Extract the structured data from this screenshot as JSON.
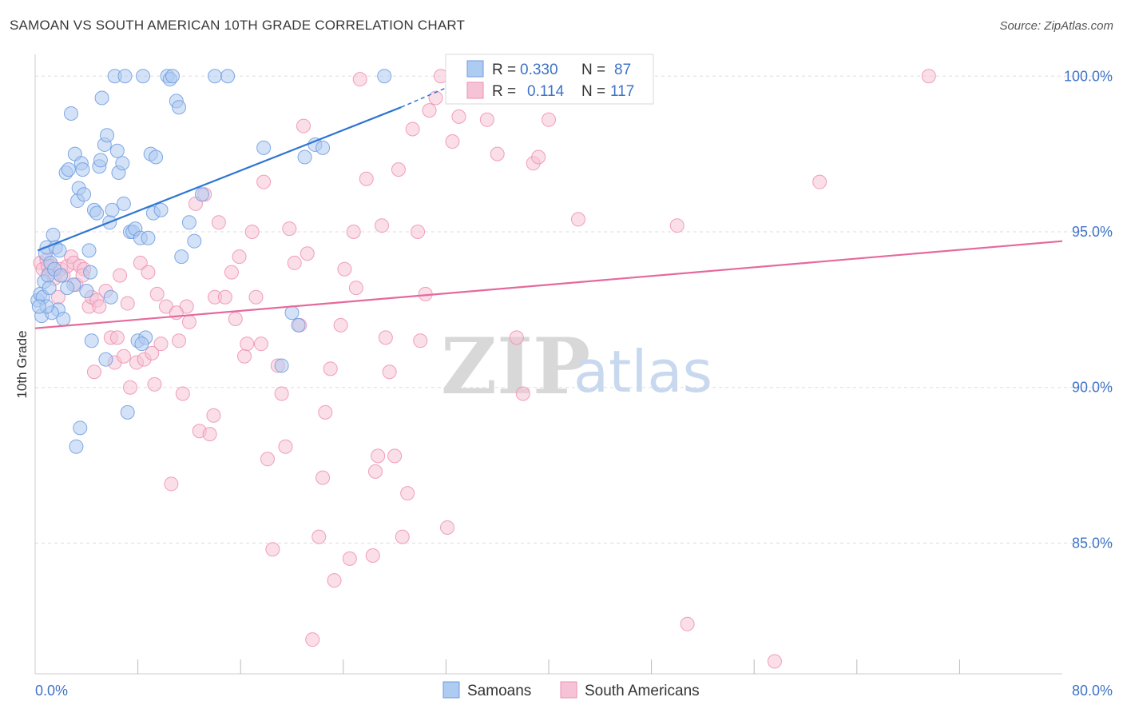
{
  "title": "SAMOAN VS SOUTH AMERICAN 10TH GRADE CORRELATION CHART",
  "source": "Source: ZipAtlas.com",
  "watermark": {
    "zip": "ZIP",
    "atlas": "atlas"
  },
  "colors": {
    "samoans": "#6d9be0",
    "samoans_fill": "#aecbf1",
    "south_americans": "#ee8fb0",
    "south_americans_fill": "#f6c3d6",
    "blue_line": "#2f76d2",
    "pink_line": "#e5699a",
    "grid": "#dddddd",
    "axis_label": "#3f73c7"
  },
  "stats": {
    "samoans": {
      "r_label": "R =",
      "r_value": "0.330",
      "n_label": "N =",
      "n_value": "87"
    },
    "south_americans": {
      "r_label": "R =",
      "r_value": "0.114",
      "n_label": "N =",
      "n_value": "117"
    }
  },
  "chart_data": {
    "type": "scatter",
    "title": "SAMOAN VS SOUTH AMERICAN 10TH GRADE CORRELATION CHART",
    "xlabel": "",
    "ylabel": "10th Grade",
    "xlim": [
      0,
      80
    ],
    "ylim": [
      80.8,
      100.7
    ],
    "x_tick_labels": [
      {
        "value": 0,
        "label": "0.0%"
      },
      {
        "value": 80,
        "label": "80.0%"
      }
    ],
    "x_minor_ticks": [
      8,
      16,
      24,
      32,
      40,
      48,
      56,
      64,
      72
    ],
    "y_tick_labels": [
      {
        "value": 100,
        "label": "100.0%"
      },
      {
        "value": 95,
        "label": "95.0%"
      },
      {
        "value": 90,
        "label": "90.0%"
      },
      {
        "value": 85,
        "label": "85.0%"
      }
    ],
    "grid": true,
    "legend_position": "bottom-center",
    "series": [
      {
        "name": "Samoans",
        "trendline": {
          "x": [
            0.2,
            28.5
          ],
          "y": [
            94.4,
            99.0
          ],
          "dashed_to": {
            "x": 33.0,
            "y": 99.8
          }
        },
        "points": [
          [
            0.2,
            92.8
          ],
          [
            0.4,
            93.0
          ],
          [
            0.5,
            92.3
          ],
          [
            0.6,
            92.9
          ],
          [
            0.7,
            93.4
          ],
          [
            0.8,
            94.3
          ],
          [
            0.9,
            94.5
          ],
          [
            1.0,
            93.6
          ],
          [
            1.1,
            93.2
          ],
          [
            1.2,
            94.0
          ],
          [
            1.4,
            94.9
          ],
          [
            1.5,
            93.8
          ],
          [
            1.6,
            94.5
          ],
          [
            1.8,
            92.5
          ],
          [
            2.0,
            93.6
          ],
          [
            2.2,
            92.2
          ],
          [
            2.4,
            96.9
          ],
          [
            2.6,
            97.0
          ],
          [
            2.8,
            98.8
          ],
          [
            3.0,
            93.3
          ],
          [
            3.1,
            97.5
          ],
          [
            3.2,
            88.1
          ],
          [
            3.3,
            96.0
          ],
          [
            3.4,
            96.4
          ],
          [
            3.6,
            97.2
          ],
          [
            3.7,
            97.0
          ],
          [
            3.8,
            96.2
          ],
          [
            4.0,
            93.1
          ],
          [
            4.2,
            94.4
          ],
          [
            4.3,
            93.7
          ],
          [
            4.4,
            91.5
          ],
          [
            4.6,
            95.7
          ],
          [
            4.8,
            95.6
          ],
          [
            5.0,
            97.1
          ],
          [
            5.1,
            97.3
          ],
          [
            5.2,
            99.3
          ],
          [
            5.4,
            97.8
          ],
          [
            5.5,
            90.9
          ],
          [
            5.6,
            98.1
          ],
          [
            5.8,
            95.3
          ],
          [
            6.0,
            95.7
          ],
          [
            6.2,
            100.0
          ],
          [
            6.4,
            97.6
          ],
          [
            6.5,
            96.9
          ],
          [
            6.8,
            97.2
          ],
          [
            6.9,
            95.9
          ],
          [
            7.0,
            100.0
          ],
          [
            7.2,
            89.2
          ],
          [
            7.4,
            95.0
          ],
          [
            7.6,
            95.0
          ],
          [
            7.8,
            95.1
          ],
          [
            8.0,
            91.5
          ],
          [
            8.2,
            94.8
          ],
          [
            8.4,
            100.0
          ],
          [
            8.6,
            91.6
          ],
          [
            8.8,
            94.8
          ],
          [
            9.0,
            97.5
          ],
          [
            9.2,
            95.6
          ],
          [
            9.4,
            97.4
          ],
          [
            9.8,
            95.7
          ],
          [
            10.3,
            100.0
          ],
          [
            10.5,
            99.9
          ],
          [
            10.7,
            100.0
          ],
          [
            11.0,
            99.2
          ],
          [
            11.2,
            99.0
          ],
          [
            11.4,
            94.2
          ],
          [
            12.0,
            95.3
          ],
          [
            12.4,
            94.7
          ],
          [
            13.0,
            96.2
          ],
          [
            14.0,
            100.0
          ],
          [
            15.0,
            100.0
          ],
          [
            17.8,
            97.7
          ],
          [
            19.2,
            90.7
          ],
          [
            20.0,
            92.4
          ],
          [
            20.5,
            92.0
          ],
          [
            21.0,
            97.4
          ],
          [
            21.8,
            97.8
          ],
          [
            22.4,
            97.7
          ],
          [
            27.2,
            100.0
          ],
          [
            3.5,
            88.7
          ],
          [
            1.3,
            92.4
          ],
          [
            0.9,
            92.6
          ],
          [
            2.5,
            93.2
          ],
          [
            5.9,
            92.9
          ],
          [
            8.3,
            91.4
          ],
          [
            1.9,
            94.4
          ],
          [
            0.3,
            92.6
          ]
        ]
      },
      {
        "name": "South Americans",
        "trendline": {
          "x": [
            0.0,
            80.0
          ],
          "y": [
            91.9,
            94.7
          ]
        },
        "points": [
          [
            0.4,
            94.0
          ],
          [
            0.6,
            93.8
          ],
          [
            0.9,
            94.1
          ],
          [
            1.1,
            93.7
          ],
          [
            1.3,
            93.9
          ],
          [
            1.5,
            93.5
          ],
          [
            1.8,
            92.9
          ],
          [
            2.0,
            93.8
          ],
          [
            2.2,
            93.6
          ],
          [
            2.5,
            93.9
          ],
          [
            2.8,
            94.2
          ],
          [
            3.0,
            94.0
          ],
          [
            3.2,
            93.3
          ],
          [
            3.5,
            93.9
          ],
          [
            3.8,
            93.8
          ],
          [
            4.2,
            92.6
          ],
          [
            4.4,
            92.9
          ],
          [
            4.6,
            90.5
          ],
          [
            4.8,
            92.8
          ],
          [
            5.0,
            92.6
          ],
          [
            5.5,
            93.1
          ],
          [
            5.9,
            91.6
          ],
          [
            6.2,
            90.8
          ],
          [
            6.6,
            93.6
          ],
          [
            6.9,
            91.0
          ],
          [
            7.2,
            92.7
          ],
          [
            7.4,
            90.0
          ],
          [
            7.9,
            90.8
          ],
          [
            8.2,
            94.0
          ],
          [
            8.5,
            90.9
          ],
          [
            8.8,
            93.7
          ],
          [
            9.1,
            91.1
          ],
          [
            9.5,
            93.0
          ],
          [
            9.8,
            91.4
          ],
          [
            10.2,
            92.6
          ],
          [
            10.6,
            86.9
          ],
          [
            11.2,
            91.5
          ],
          [
            11.5,
            89.8
          ],
          [
            11.8,
            92.6
          ],
          [
            12.0,
            92.1
          ],
          [
            12.5,
            95.9
          ],
          [
            12.8,
            88.6
          ],
          [
            13.2,
            96.2
          ],
          [
            13.6,
            88.5
          ],
          [
            13.9,
            89.1
          ],
          [
            14.0,
            92.9
          ],
          [
            14.3,
            95.3
          ],
          [
            14.8,
            92.9
          ],
          [
            15.3,
            93.7
          ],
          [
            15.6,
            92.2
          ],
          [
            15.9,
            94.2
          ],
          [
            16.3,
            91.0
          ],
          [
            16.5,
            91.4
          ],
          [
            16.9,
            95.0
          ],
          [
            17.2,
            92.9
          ],
          [
            17.6,
            91.4
          ],
          [
            17.8,
            96.6
          ],
          [
            18.1,
            87.7
          ],
          [
            18.5,
            84.8
          ],
          [
            18.9,
            90.7
          ],
          [
            19.2,
            89.8
          ],
          [
            19.5,
            88.1
          ],
          [
            19.8,
            95.1
          ],
          [
            20.2,
            94.0
          ],
          [
            20.6,
            92.0
          ],
          [
            20.9,
            98.4
          ],
          [
            21.2,
            94.3
          ],
          [
            21.6,
            81.9
          ],
          [
            22.1,
            85.2
          ],
          [
            22.4,
            87.1
          ],
          [
            22.6,
            89.2
          ],
          [
            23.0,
            90.6
          ],
          [
            23.3,
            83.8
          ],
          [
            23.8,
            92.0
          ],
          [
            24.1,
            93.8
          ],
          [
            24.5,
            84.5
          ],
          [
            24.8,
            95.0
          ],
          [
            25.0,
            93.2
          ],
          [
            25.3,
            99.9
          ],
          [
            25.8,
            96.7
          ],
          [
            26.3,
            84.6
          ],
          [
            26.5,
            87.3
          ],
          [
            26.7,
            87.8
          ],
          [
            27.0,
            95.2
          ],
          [
            27.3,
            91.6
          ],
          [
            27.6,
            90.5
          ],
          [
            28.0,
            87.8
          ],
          [
            28.3,
            97.0
          ],
          [
            28.6,
            85.2
          ],
          [
            29.0,
            86.6
          ],
          [
            29.4,
            98.3
          ],
          [
            29.8,
            95.0
          ],
          [
            30.0,
            91.5
          ],
          [
            30.4,
            93.0
          ],
          [
            30.7,
            98.9
          ],
          [
            31.2,
            99.3
          ],
          [
            31.6,
            100.0
          ],
          [
            32.1,
            85.5
          ],
          [
            32.5,
            97.9
          ],
          [
            33.0,
            98.7
          ],
          [
            34.0,
            99.6
          ],
          [
            35.2,
            98.6
          ],
          [
            36.0,
            97.5
          ],
          [
            37.5,
            91.6
          ],
          [
            38.0,
            89.8
          ],
          [
            38.8,
            97.2
          ],
          [
            39.2,
            97.4
          ],
          [
            40.0,
            98.6
          ],
          [
            42.3,
            95.4
          ],
          [
            50.0,
            95.2
          ],
          [
            50.8,
            82.4
          ],
          [
            57.6,
            81.2
          ],
          [
            61.1,
            96.6
          ],
          [
            69.6,
            100.0
          ],
          [
            1.0,
            93.9
          ],
          [
            3.7,
            93.6
          ],
          [
            6.4,
            91.6
          ],
          [
            9.3,
            90.1
          ],
          [
            11.0,
            92.4
          ]
        ]
      }
    ]
  },
  "legend": {
    "samoans": "Samoans",
    "south_americans": "South Americans"
  }
}
